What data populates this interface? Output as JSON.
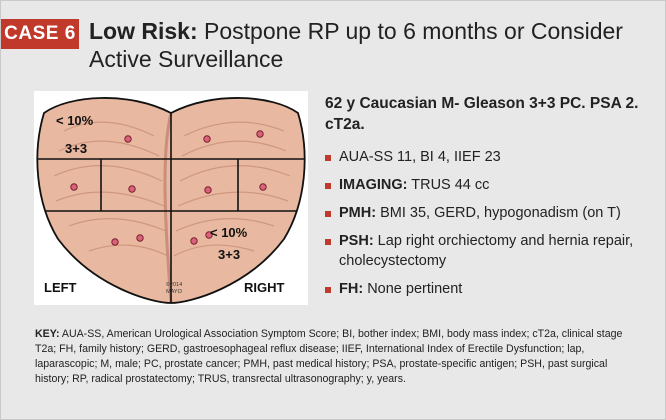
{
  "header": {
    "case_label": "CASE 6",
    "title_lead": "Low Risk:",
    "title_rest": " Postpone RP up to 6 months or Consider Active Surveillance"
  },
  "diagram": {
    "left_label": "LEFT",
    "right_label": "RIGHT",
    "copyright_line1": "©2014",
    "copyright_line2": "MAYO",
    "annotation_top_left_pct": "< 10%",
    "annotation_top_left_score": "3+3",
    "annotation_bottom_right_pct": "< 10%",
    "annotation_bottom_right_score": "3+3",
    "colors": {
      "tissue": "#e8b8a0",
      "grid": "#111111",
      "dot": "#d9627a"
    }
  },
  "case_summary": "62 y Caucasian M- Gleason 3+3 PC. PSA 2. cT2a.",
  "bullets": [
    {
      "label": "",
      "text": "AUA-SS 11, BI 4, IIEF 23"
    },
    {
      "label": "IMAGING:",
      "text": " TRUS 44 cc"
    },
    {
      "label": "PMH:",
      "text": " BMI 35, GERD, hypogonadism (on T)"
    },
    {
      "label": "PSH:",
      "text": " Lap right orchiectomy and hernia repair, cholecystectomy"
    },
    {
      "label": "FH:",
      "text": " None pertinent"
    }
  ],
  "key": {
    "label": "KEY:",
    "text": " AUA-SS, American Urological Association Symptom Score; BI, bother index; BMI, body mass index; cT2a, clinical stage T2a; FH, family history; GERD, gastroesophageal reflux disease; IIEF, International Index of Erectile Dysfunction; lap, laparascopic; M, male; PC, prostate cancer; PMH, past medical history; PSA, prostate-specific antigen; PSH, past surgical history; RP, radical prostatectomy; TRUS, transrectal ultrasonography; y, years."
  }
}
